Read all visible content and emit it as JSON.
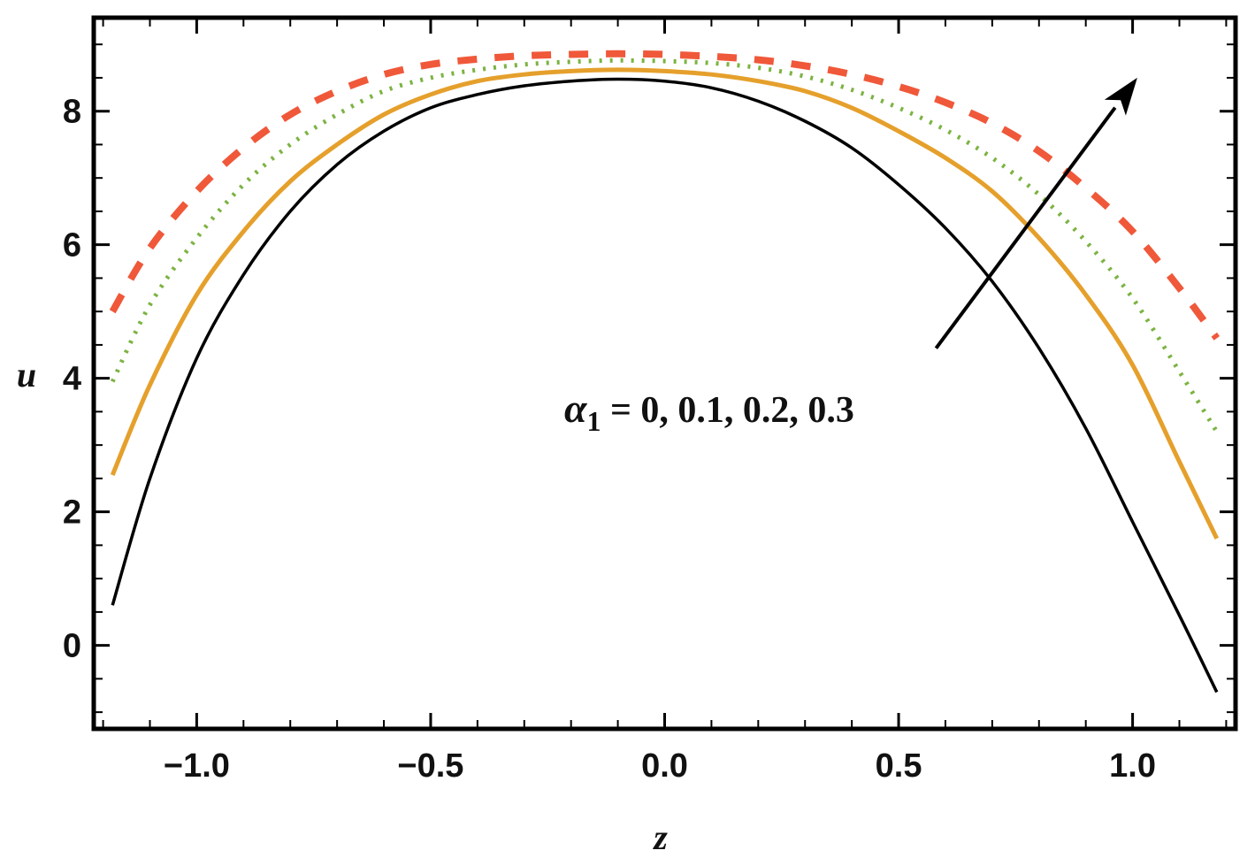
{
  "chart_data": {
    "type": "line",
    "title": "",
    "xlabel": "z",
    "ylabel": "u",
    "xlim": [
      -1.22,
      1.22
    ],
    "ylim": [
      -1.25,
      9.4
    ],
    "x_ticks": [
      -1.0,
      -0.5,
      0.0,
      0.5,
      1.0
    ],
    "x_tick_labels": [
      "−1.0",
      "−0.5",
      "0.0",
      "0.5",
      "1.0"
    ],
    "y_ticks": [
      0,
      2,
      4,
      6,
      8
    ],
    "y_tick_labels": [
      "0",
      "2",
      "4",
      "6",
      "8"
    ],
    "grid": false,
    "annotation": {
      "symbol": "α",
      "subscript": "1",
      "text": " = 0,  0.1,  0.2,  0.3",
      "arrow_from": [
        0.58,
        4.45
      ],
      "arrow_to": [
        1.01,
        8.5
      ]
    },
    "series": [
      {
        "color": "#000000",
        "style": "solid",
        "x": [
          -1.18,
          -1.1,
          -1.0,
          -0.9,
          -0.8,
          -0.7,
          -0.6,
          -0.5,
          -0.4,
          -0.3,
          -0.2,
          -0.1,
          0.0,
          0.1,
          0.2,
          0.3,
          0.4,
          0.5,
          0.6,
          0.7,
          0.8,
          0.9,
          1.0,
          1.1,
          1.18
        ],
        "y": [
          0.6,
          2.5,
          4.3,
          5.55,
          6.5,
          7.2,
          7.7,
          8.05,
          8.25,
          8.38,
          8.45,
          8.48,
          8.45,
          8.35,
          8.15,
          7.85,
          7.45,
          6.9,
          6.25,
          5.45,
          4.45,
          3.25,
          1.85,
          0.45,
          -0.7
        ]
      },
      {
        "color": "#E5A02C",
        "style": "solid",
        "x": [
          -1.18,
          -1.1,
          -1.0,
          -0.9,
          -0.8,
          -0.7,
          -0.6,
          -0.5,
          -0.4,
          -0.3,
          -0.2,
          -0.1,
          0.0,
          0.1,
          0.2,
          0.3,
          0.4,
          0.5,
          0.6,
          0.7,
          0.8,
          0.9,
          1.0,
          1.1,
          1.18
        ],
        "y": [
          2.55,
          3.9,
          5.25,
          6.2,
          6.95,
          7.5,
          7.95,
          8.25,
          8.45,
          8.55,
          8.6,
          8.62,
          8.6,
          8.55,
          8.45,
          8.3,
          8.05,
          7.7,
          7.3,
          6.8,
          6.1,
          5.25,
          4.2,
          2.75,
          1.6
        ]
      },
      {
        "color": "#7CB342",
        "style": "dotted",
        "x": [
          -1.18,
          -1.1,
          -1.0,
          -0.9,
          -0.8,
          -0.7,
          -0.6,
          -0.5,
          -0.4,
          -0.3,
          -0.2,
          -0.1,
          0.0,
          0.1,
          0.2,
          0.3,
          0.4,
          0.5,
          0.6,
          0.7,
          0.8,
          0.9,
          1.0,
          1.1,
          1.18
        ],
        "y": [
          3.95,
          5.1,
          6.1,
          6.9,
          7.5,
          7.95,
          8.3,
          8.5,
          8.62,
          8.7,
          8.74,
          8.76,
          8.75,
          8.72,
          8.65,
          8.52,
          8.32,
          8.05,
          7.72,
          7.3,
          6.75,
          6.05,
          5.2,
          4.1,
          3.2
        ]
      },
      {
        "color": "#F0583A",
        "style": "dashed",
        "x": [
          -1.18,
          -1.1,
          -1.0,
          -0.9,
          -0.8,
          -0.7,
          -0.6,
          -0.5,
          -0.4,
          -0.3,
          -0.2,
          -0.1,
          0.0,
          0.1,
          0.2,
          0.3,
          0.4,
          0.5,
          0.6,
          0.7,
          0.8,
          0.9,
          1.0,
          1.1,
          1.18
        ],
        "y": [
          5.0,
          5.95,
          6.8,
          7.45,
          7.95,
          8.3,
          8.55,
          8.7,
          8.78,
          8.83,
          8.85,
          8.86,
          8.85,
          8.82,
          8.77,
          8.68,
          8.55,
          8.37,
          8.13,
          7.82,
          7.4,
          6.85,
          6.2,
          5.35,
          4.6
        ]
      }
    ]
  }
}
